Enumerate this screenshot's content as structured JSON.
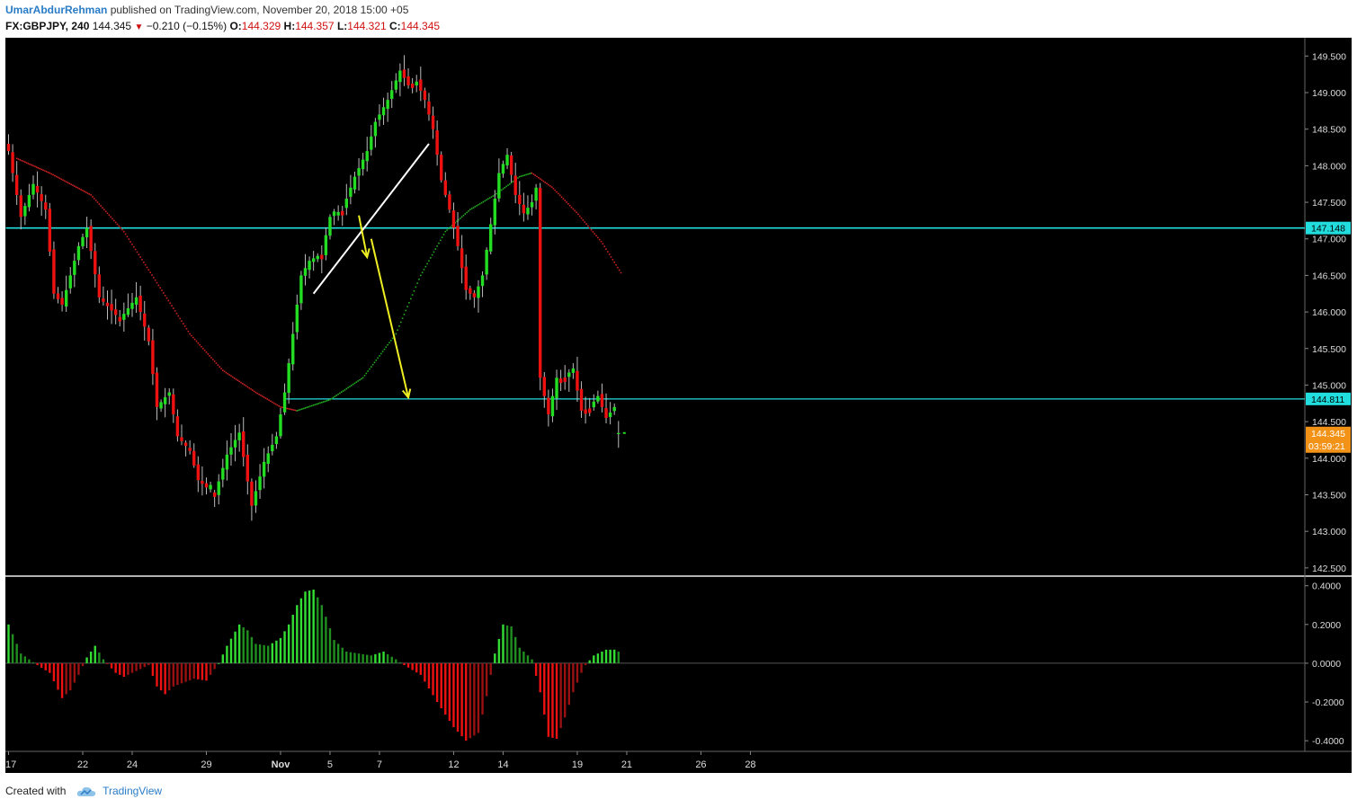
{
  "header": {
    "author": "UmarAbdurRehman",
    "published_text": "published on TradingView.com, November 20, 2018 15:00 +05",
    "symbol": "FX:GBPJPY, 240",
    "last": "144.345",
    "change": "−0.210 (−0.15%)",
    "open_label": "O:",
    "open": "144.329",
    "high_label": "H:",
    "high": "144.357",
    "low_label": "L:",
    "low": "144.321",
    "close_label": "C:",
    "close": "144.345"
  },
  "footer": {
    "created_with": "Created with",
    "brand": "TradingView"
  },
  "colors": {
    "up": "#22dd22",
    "down": "#ee1111",
    "level": "#22dddd",
    "trendline": "#ffffff",
    "arrow": "#eeee22",
    "ma_down": "#cc2222",
    "ma_up": "#22aa22",
    "osc_up_strong": "#33dd33",
    "osc_up_weak": "#1f8f1f",
    "osc_down_strong": "#ee1111",
    "osc_down_weak": "#991111",
    "last_price_tag": "#f29318"
  },
  "chart_data": [
    {
      "type": "candlestick",
      "symbol": "FX:GBPJPY",
      "timeframe": "240",
      "ylim": [
        142.4,
        149.75
      ],
      "y_ticks": [
        "142.500",
        "143.000",
        "143.500",
        "144.000",
        "144.500",
        "145.000",
        "145.500",
        "146.000",
        "146.500",
        "147.000",
        "147.500",
        "148.000",
        "148.500",
        "149.000",
        "149.500"
      ],
      "x_ticks": [
        {
          "label": "17",
          "i": 0
        },
        {
          "label": "22",
          "i": 18
        },
        {
          "label": "24",
          "i": 30
        },
        {
          "label": "29",
          "i": 48
        },
        {
          "label": "Nov",
          "i": 66
        },
        {
          "label": "5",
          "i": 78
        },
        {
          "label": "7",
          "i": 90
        },
        {
          "label": "12",
          "i": 108
        },
        {
          "label": "14",
          "i": 120
        },
        {
          "label": "19",
          "i": 138
        },
        {
          "label": "21",
          "i": 150
        },
        {
          "label": "26",
          "i": 168
        },
        {
          "label": "28",
          "i": 180
        }
      ],
      "price_levels": [
        {
          "value": 147.148,
          "label": "147.148",
          "from_i": 0
        },
        {
          "value": 144.811,
          "label": "144.811",
          "from_i": 68
        }
      ],
      "last_price": {
        "value": 144.345,
        "label": "144.345",
        "countdown": "03:59:21"
      },
      "anchors": [
        {
          "i": 0,
          "p": 148.2
        },
        {
          "i": 3,
          "p": 147.3
        },
        {
          "i": 6,
          "p": 147.75
        },
        {
          "i": 9,
          "p": 147.4
        },
        {
          "i": 11,
          "p": 146.25
        },
        {
          "i": 13,
          "p": 146.1
        },
        {
          "i": 17,
          "p": 146.9
        },
        {
          "i": 19,
          "p": 147.15
        },
        {
          "i": 22,
          "p": 146.2
        },
        {
          "i": 27,
          "p": 145.9
        },
        {
          "i": 31,
          "p": 146.2
        },
        {
          "i": 34,
          "p": 145.6
        },
        {
          "i": 36,
          "p": 144.7
        },
        {
          "i": 39,
          "p": 144.9
        },
        {
          "i": 41,
          "p": 144.3
        },
        {
          "i": 44,
          "p": 144.1
        },
        {
          "i": 46,
          "p": 143.7
        },
        {
          "i": 50,
          "p": 143.5
        },
        {
          "i": 53,
          "p": 144.05
        },
        {
          "i": 56,
          "p": 144.35
        },
        {
          "i": 59,
          "p": 143.35
        },
        {
          "i": 62,
          "p": 143.95
        },
        {
          "i": 65,
          "p": 144.3
        },
        {
          "i": 67,
          "p": 144.9
        },
        {
          "i": 69,
          "p": 145.7
        },
        {
          "i": 71,
          "p": 146.5
        },
        {
          "i": 73,
          "p": 146.7
        },
        {
          "i": 76,
          "p": 146.8
        },
        {
          "i": 78,
          "p": 147.3
        },
        {
          "i": 81,
          "p": 147.4
        },
        {
          "i": 84,
          "p": 147.85
        },
        {
          "i": 87,
          "p": 148.2
        },
        {
          "i": 89,
          "p": 148.6
        },
        {
          "i": 92,
          "p": 148.9
        },
        {
          "i": 95,
          "p": 149.3
        },
        {
          "i": 97,
          "p": 149.1
        },
        {
          "i": 99,
          "p": 149.15
        },
        {
          "i": 101,
          "p": 148.9
        },
        {
          "i": 103,
          "p": 148.5
        },
        {
          "i": 105,
          "p": 147.8
        },
        {
          "i": 107,
          "p": 147.4
        },
        {
          "i": 109,
          "p": 146.9
        },
        {
          "i": 111,
          "p": 146.3
        },
        {
          "i": 113,
          "p": 146.2
        },
        {
          "i": 115,
          "p": 146.5
        },
        {
          "i": 117,
          "p": 147.2
        },
        {
          "i": 119,
          "p": 147.9
        },
        {
          "i": 121,
          "p": 148.15
        },
        {
          "i": 123,
          "p": 147.6
        },
        {
          "i": 125,
          "p": 147.35
        },
        {
          "i": 127,
          "p": 147.5
        },
        {
          "i": 128,
          "p": 147.7
        },
        {
          "i": 129,
          "p": 145.1
        },
        {
          "i": 131,
          "p": 144.6
        },
        {
          "i": 133,
          "p": 145.1
        },
        {
          "i": 135,
          "p": 145.1
        },
        {
          "i": 137,
          "p": 145.2
        },
        {
          "i": 139,
          "p": 144.65
        },
        {
          "i": 141,
          "p": 144.7
        },
        {
          "i": 143,
          "p": 144.85
        },
        {
          "i": 145,
          "p": 144.55
        },
        {
          "i": 147,
          "p": 144.7
        },
        {
          "i": 148,
          "p": 144.345
        }
      ],
      "moving_average_1": [
        {
          "i": 2,
          "p": 148.1
        },
        {
          "i": 10,
          "p": 147.9
        },
        {
          "i": 20,
          "p": 147.6
        },
        {
          "i": 28,
          "p": 147.1
        },
        {
          "i": 36,
          "p": 146.4
        },
        {
          "i": 44,
          "p": 145.7
        },
        {
          "i": 52,
          "p": 145.2
        },
        {
          "i": 60,
          "p": 144.9
        },
        {
          "i": 66,
          "p": 144.7
        },
        {
          "i": 70,
          "p": 144.65
        }
      ],
      "moving_average_2": [
        {
          "i": 70,
          "p": 144.65
        },
        {
          "i": 78,
          "p": 144.8
        },
        {
          "i": 86,
          "p": 145.1
        },
        {
          "i": 94,
          "p": 145.7
        },
        {
          "i": 100,
          "p": 146.5
        },
        {
          "i": 106,
          "p": 147.1
        },
        {
          "i": 112,
          "p": 147.4
        },
        {
          "i": 118,
          "p": 147.6
        },
        {
          "i": 124,
          "p": 147.85
        },
        {
          "i": 127,
          "p": 147.9
        }
      ],
      "moving_average_3": [
        {
          "i": 127,
          "p": 147.9
        },
        {
          "i": 132,
          "p": 147.7
        },
        {
          "i": 138,
          "p": 147.35
        },
        {
          "i": 144,
          "p": 146.95
        },
        {
          "i": 149,
          "p": 146.5
        }
      ],
      "trendline": [
        {
          "i": 74,
          "p": 146.25
        },
        {
          "i": 102,
          "p": 148.3
        }
      ],
      "arrows": [
        {
          "from": {
            "i": 85,
            "p": 147.32
          },
          "to": {
            "i": 87,
            "p": 146.75
          }
        },
        {
          "from": {
            "i": 88,
            "p": 147.0
          },
          "to": {
            "i": 97,
            "p": 144.83
          }
        }
      ]
    },
    {
      "type": "histogram",
      "name": "oscillator",
      "ylim": [
        -0.455,
        0.445
      ],
      "y_ticks": [
        "0.4000",
        "0.2000",
        "0.0000",
        "-0.2000",
        "-0.4000"
      ],
      "anchors": [
        {
          "i": 0,
          "v": 0.2
        },
        {
          "i": 3,
          "v": 0.05
        },
        {
          "i": 7,
          "v": -0.01
        },
        {
          "i": 10,
          "v": -0.05
        },
        {
          "i": 13,
          "v": -0.18
        },
        {
          "i": 15,
          "v": -0.14
        },
        {
          "i": 17,
          "v": -0.06
        },
        {
          "i": 19,
          "v": 0.03
        },
        {
          "i": 21,
          "v": 0.09
        },
        {
          "i": 23,
          "v": 0.02
        },
        {
          "i": 26,
          "v": -0.05
        },
        {
          "i": 28,
          "v": -0.07
        },
        {
          "i": 31,
          "v": -0.04
        },
        {
          "i": 34,
          "v": -0.01
        },
        {
          "i": 36,
          "v": -0.12
        },
        {
          "i": 38,
          "v": -0.16
        },
        {
          "i": 40,
          "v": -0.12
        },
        {
          "i": 45,
          "v": -0.08
        },
        {
          "i": 48,
          "v": -0.09
        },
        {
          "i": 50,
          "v": -0.03
        },
        {
          "i": 51,
          "v": 0.0
        },
        {
          "i": 53,
          "v": 0.09
        },
        {
          "i": 56,
          "v": 0.2
        },
        {
          "i": 58,
          "v": 0.17
        },
        {
          "i": 60,
          "v": 0.1
        },
        {
          "i": 63,
          "v": 0.09
        },
        {
          "i": 66,
          "v": 0.13
        },
        {
          "i": 68,
          "v": 0.2
        },
        {
          "i": 70,
          "v": 0.3
        },
        {
          "i": 72,
          "v": 0.37
        },
        {
          "i": 74,
          "v": 0.38
        },
        {
          "i": 76,
          "v": 0.3
        },
        {
          "i": 79,
          "v": 0.12
        },
        {
          "i": 82,
          "v": 0.06
        },
        {
          "i": 85,
          "v": 0.05
        },
        {
          "i": 88,
          "v": 0.04
        },
        {
          "i": 91,
          "v": 0.06
        },
        {
          "i": 94,
          "v": 0.02
        },
        {
          "i": 96,
          "v": -0.01
        },
        {
          "i": 100,
          "v": -0.06
        },
        {
          "i": 104,
          "v": -0.2
        },
        {
          "i": 108,
          "v": -0.33
        },
        {
          "i": 111,
          "v": -0.4
        },
        {
          "i": 114,
          "v": -0.36
        },
        {
          "i": 116,
          "v": -0.17
        },
        {
          "i": 118,
          "v": 0.05
        },
        {
          "i": 120,
          "v": 0.2
        },
        {
          "i": 122,
          "v": 0.19
        },
        {
          "i": 124,
          "v": 0.08
        },
        {
          "i": 127,
          "v": 0.02
        },
        {
          "i": 129,
          "v": -0.15
        },
        {
          "i": 131,
          "v": -0.38
        },
        {
          "i": 133,
          "v": -0.39
        },
        {
          "i": 135,
          "v": -0.28
        },
        {
          "i": 137,
          "v": -0.15
        },
        {
          "i": 139,
          "v": -0.05
        },
        {
          "i": 140,
          "v": -0.01
        },
        {
          "i": 142,
          "v": 0.04
        },
        {
          "i": 145,
          "v": 0.07
        },
        {
          "i": 147,
          "v": 0.07
        },
        {
          "i": 148,
          "v": 0.06
        }
      ]
    }
  ]
}
